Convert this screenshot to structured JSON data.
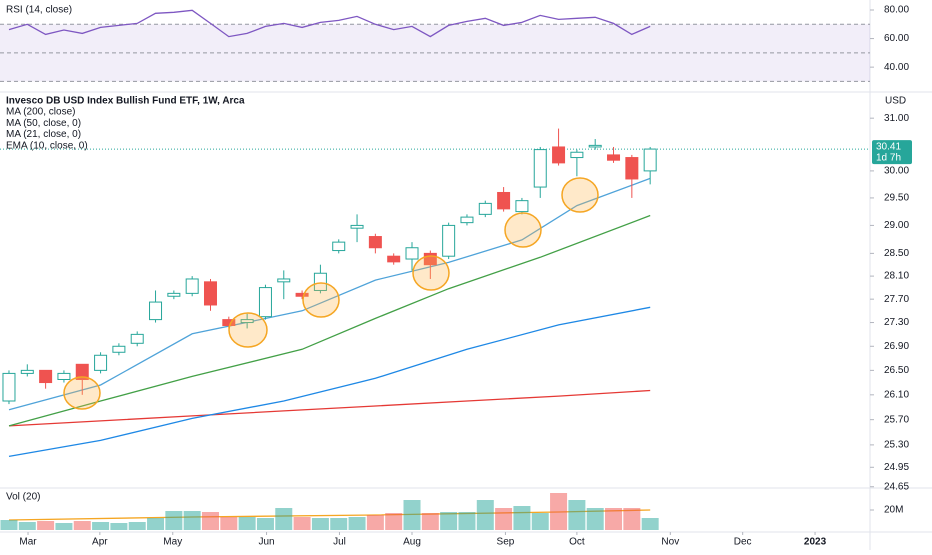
{
  "chart_data": [
    {
      "type": "line",
      "title": "RSI (14, close)",
      "color": "#7e57c2",
      "x": [
        0,
        1,
        2,
        3,
        4,
        5,
        6,
        7,
        8,
        9,
        10,
        11,
        12,
        13,
        14,
        15,
        16,
        17,
        18,
        19,
        20,
        21,
        22,
        23,
        24,
        25,
        26,
        27,
        28,
        29,
        30,
        31,
        32,
        33,
        34,
        35
      ],
      "values": [
        66.3,
        70,
        62.9,
        66,
        63.6,
        67.8,
        69.2,
        70.6,
        77.7,
        78.4,
        79.8,
        70.6,
        61.4,
        63.6,
        68.5,
        70.6,
        67.8,
        71.3,
        72.7,
        75.5,
        70,
        66.3,
        68.5,
        61.4,
        69.2,
        72,
        74.2,
        69.2,
        71.3,
        76.2,
        73.4,
        74.2,
        74.9,
        70.6,
        62.9,
        68.5
      ],
      "ylim": [
        24,
        87
      ],
      "yticks": [
        {
          "value": 80,
          "label": "80.00"
        },
        {
          "value": 60,
          "label": "60.00"
        },
        {
          "value": 40,
          "label": "40.00"
        }
      ],
      "levels": [
        70,
        50,
        30
      ]
    },
    {
      "type": "candlestick",
      "title": "Invesco DB USD Index Bullish Fund ETF, 1W, Arca",
      "y_label": "USD",
      "log_scale": true,
      "up_color": "#26a69a",
      "down_color": "#ef5350",
      "x": [
        0,
        1,
        2,
        3,
        4,
        5,
        6,
        7,
        8,
        9,
        10,
        11,
        12,
        13,
        14,
        15,
        16,
        17,
        18,
        19,
        20,
        21,
        22,
        23,
        24,
        25,
        26,
        27,
        28,
        29,
        30,
        31,
        32,
        33,
        34,
        35
      ],
      "open": [
        26.0,
        26.45,
        26.5,
        26.35,
        26.6,
        26.5,
        26.8,
        26.95,
        27.35,
        27.75,
        27.8,
        28.0,
        27.35,
        27.3,
        27.4,
        28.0,
        27.8,
        27.85,
        28.55,
        28.95,
        28.8,
        28.45,
        28.4,
        28.5,
        28.45,
        29.05,
        29.2,
        29.6,
        29.25,
        29.7,
        30.45,
        30.25,
        30.45,
        30.3,
        30.25,
        30.0
      ],
      "high": [
        26.5,
        26.6,
        26.5,
        26.5,
        26.6,
        26.8,
        26.95,
        27.15,
        27.85,
        27.85,
        28.1,
        28.05,
        27.4,
        27.45,
        27.95,
        28.2,
        27.85,
        28.3,
        28.75,
        29.2,
        28.85,
        28.5,
        28.7,
        28.55,
        29.05,
        29.2,
        29.45,
        29.7,
        29.5,
        30.45,
        30.8,
        30.4,
        30.6,
        30.45,
        30.3,
        30.45
      ],
      "low": [
        25.95,
        26.4,
        26.2,
        26.3,
        26.1,
        26.45,
        26.75,
        26.9,
        27.3,
        27.7,
        27.75,
        27.5,
        27.2,
        27.2,
        27.35,
        27.7,
        27.7,
        27.8,
        28.5,
        28.7,
        28.5,
        28.3,
        28.2,
        28.05,
        28.4,
        29.0,
        29.15,
        29.25,
        29.2,
        29.5,
        30.1,
        29.9,
        30.4,
        30.15,
        29.5,
        29.75
      ],
      "close": [
        26.45,
        26.5,
        26.3,
        26.45,
        26.35,
        26.75,
        26.9,
        27.1,
        27.65,
        27.8,
        28.05,
        27.6,
        27.25,
        27.35,
        27.9,
        28.05,
        27.75,
        28.15,
        28.7,
        29.0,
        28.6,
        28.35,
        28.6,
        28.3,
        29.0,
        29.15,
        29.4,
        29.3,
        29.45,
        30.4,
        30.15,
        30.35,
        30.48,
        30.2,
        29.85,
        30.41
      ],
      "series": [
        {
          "name": "MA (200, close)",
          "color": "#e53935",
          "x": [
            0,
            5,
            10,
            15,
            20,
            25,
            30,
            35
          ],
          "values": [
            25.6,
            25.68,
            25.76,
            25.84,
            25.92,
            26.0,
            26.08,
            26.17
          ]
        },
        {
          "name": "MA (50, close, 0)",
          "color": "#1e88e5",
          "x": [
            0,
            5,
            10,
            15,
            20,
            25,
            30,
            35
          ],
          "values": [
            25.12,
            25.37,
            25.72,
            26.0,
            26.37,
            26.85,
            27.26,
            27.56
          ]
        },
        {
          "name": "MA (21, close, 0)",
          "color": "#43a047",
          "x": [
            0,
            5,
            10,
            16,
            20,
            24,
            29,
            35
          ],
          "values": [
            25.6,
            26.0,
            26.4,
            26.85,
            27.37,
            27.88,
            28.43,
            29.18
          ]
        },
        {
          "name": "EMA (10, close, 0)",
          "color": "#4fa3d9",
          "x": [
            0,
            5,
            10,
            16,
            20,
            24,
            28,
            31,
            35
          ],
          "values": [
            25.86,
            26.26,
            27.11,
            27.5,
            28.03,
            28.34,
            28.74,
            29.36,
            29.86
          ]
        }
      ],
      "last_price": 30.41,
      "countdown": "1d 7h",
      "ylim": [
        24.6,
        31.45
      ],
      "yticks": [
        {
          "value": 31,
          "label": "31.00"
        },
        {
          "value": 30,
          "label": "30.00"
        },
        {
          "value": 29.5,
          "label": "29.50"
        },
        {
          "value": 29,
          "label": "29.00"
        },
        {
          "value": 28.5,
          "label": "28.50"
        },
        {
          "value": 28.1,
          "label": "28.10"
        },
        {
          "value": 27.7,
          "label": "27.70"
        },
        {
          "value": 27.3,
          "label": "27.30"
        },
        {
          "value": 26.9,
          "label": "26.90"
        },
        {
          "value": 26.5,
          "label": "26.50"
        },
        {
          "value": 26.1,
          "label": "26.10"
        },
        {
          "value": 25.7,
          "label": "25.70"
        },
        {
          "value": 25.3,
          "label": "25.30"
        },
        24.95,
        24.65
      ],
      "xlim": [
        -0.49,
        47
      ],
      "xticks": [
        {
          "value": 1.04,
          "label": "Mar"
        },
        {
          "value": 4.96,
          "label": "Apr"
        },
        {
          "value": 8.94,
          "label": "May"
        },
        {
          "value": 14.06,
          "label": "Jun"
        },
        {
          "value": 18.04,
          "label": "Jul"
        },
        {
          "value": 22.0,
          "label": "Aug"
        },
        {
          "value": 27.1,
          "label": "Sep"
        },
        {
          "value": 31.0,
          "label": "Oct"
        },
        {
          "value": 36.1,
          "label": "Nov"
        },
        {
          "value": 40.05,
          "label": "Dec"
        },
        {
          "value": 44.0,
          "label": "2023"
        }
      ]
    },
    {
      "type": "bar",
      "title": "Vol (20)",
      "x": [
        0,
        1,
        2,
        3,
        4,
        5,
        6,
        7,
        8,
        9,
        10,
        11,
        12,
        13,
        14,
        15,
        16,
        17,
        18,
        19,
        20,
        21,
        22,
        23,
        24,
        25,
        26,
        27,
        28,
        29,
        30,
        31,
        32,
        33,
        34,
        35
      ],
      "values": [
        10,
        8,
        9,
        7,
        9,
        8,
        7,
        8,
        12,
        19,
        19,
        18,
        13,
        13,
        12,
        22,
        13,
        12,
        12,
        13,
        15,
        17,
        30,
        17,
        18,
        18,
        30,
        22,
        24,
        17,
        37,
        30,
        22,
        22,
        22,
        12
      ],
      "ma_color": "#f5a623",
      "ma_x": [
        0,
        10,
        20,
        30,
        35
      ],
      "ma_values": [
        10,
        13,
        15,
        18,
        20
      ],
      "ylim": [
        0,
        40
      ],
      "yticks": [
        {
          "value": 20,
          "label": "20M"
        }
      ]
    }
  ]
}
